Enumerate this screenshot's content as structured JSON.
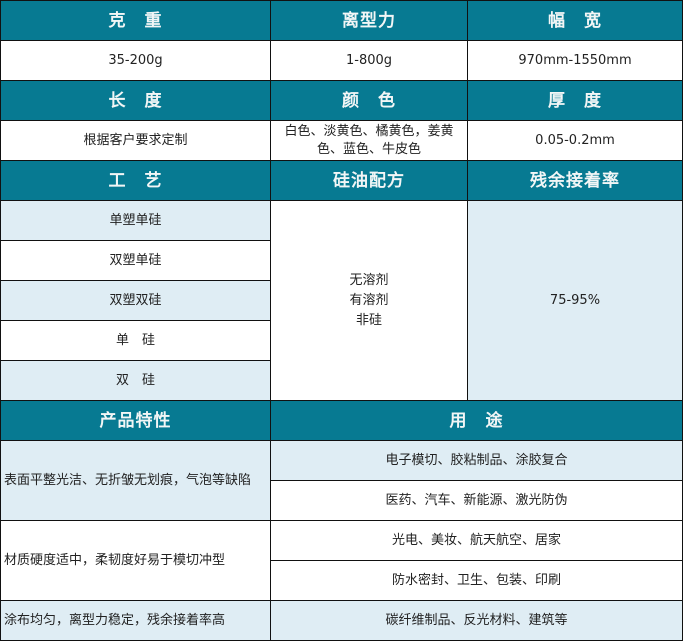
{
  "colors": {
    "header": "#077a92",
    "light": "#dfedf4"
  },
  "r1": {
    "h": [
      "克　重",
      "离型力",
      "幅　宽"
    ],
    "v": [
      "35-200g",
      "1-800g",
      "970mm-1550mm"
    ]
  },
  "r2": {
    "h": [
      "长　度",
      "颜　色",
      "厚　度"
    ],
    "v": [
      "根据客户要求定制",
      "白色、淡黄色、橘黄色，姜黄色、蓝色、牛皮色",
      "0.05-0.2mm"
    ]
  },
  "r3": {
    "h": [
      "工　艺",
      "硅油配方",
      "残余接着率"
    ],
    "process": [
      "单塑单硅",
      "双塑单硅",
      "双塑双硅",
      "单　硅",
      "双　硅"
    ],
    "silicone": [
      "无溶剂",
      "有溶剂",
      "非硅"
    ],
    "residual": "75-95%"
  },
  "r4": {
    "h": [
      "产品特性",
      "用　途"
    ],
    "features": [
      "表面平整光洁、无折皱无划痕，气泡等缺陷",
      "材质硬度适中，柔韧度好易于模切冲型",
      "涂布均匀，离型力稳定，残余接着率高"
    ],
    "uses": [
      "电子模切、胶粘制品、涂胶复合",
      "医药、汽车、新能源、激光防伪",
      "光电、美妆、航天航空、居家",
      "防水密封、卫生、包装、印刷",
      "碳纤维制品、反光材料、建筑等"
    ]
  }
}
